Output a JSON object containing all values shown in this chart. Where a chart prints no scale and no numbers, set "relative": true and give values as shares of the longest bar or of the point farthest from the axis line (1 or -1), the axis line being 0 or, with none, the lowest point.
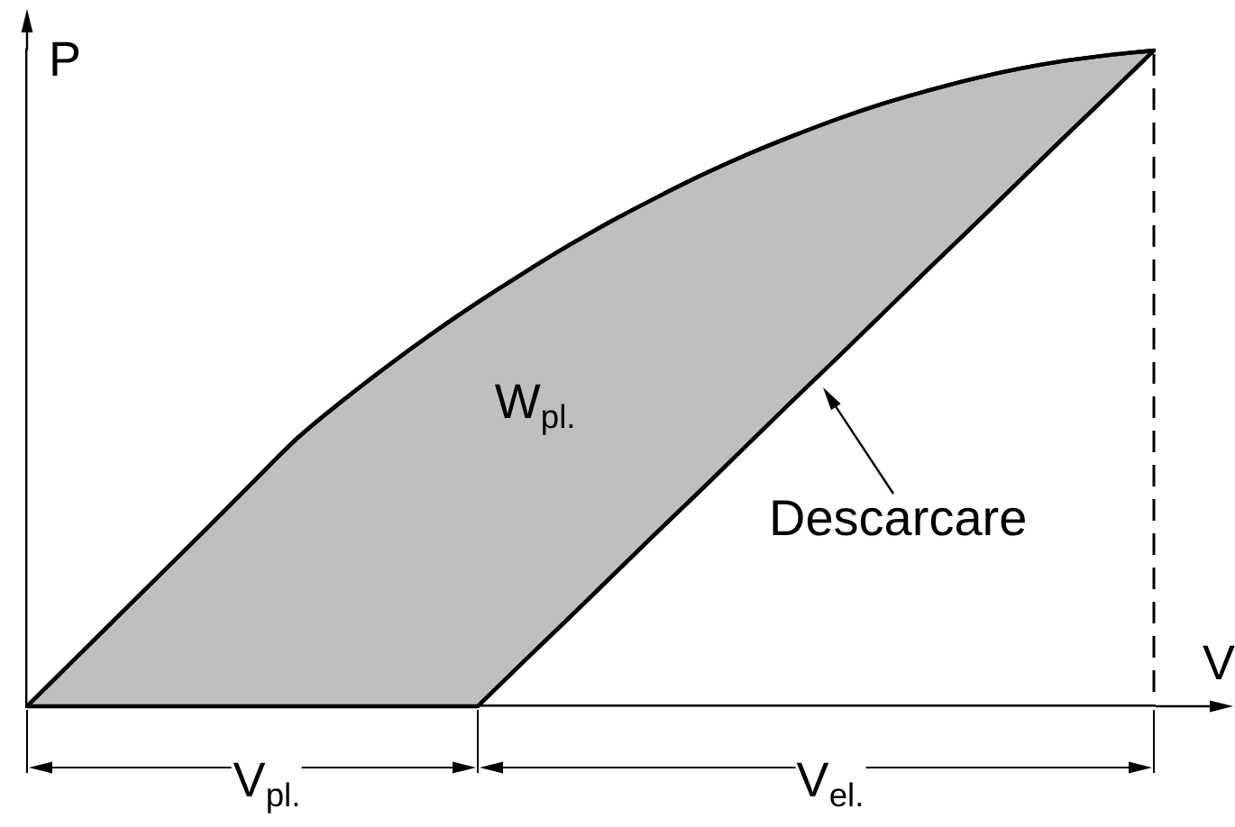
{
  "chart_data": {
    "type": "line",
    "relative": true,
    "xlabel": "V",
    "ylabel": "P",
    "categories": [
      null,
      null,
      null,
      null,
      null,
      null,
      null,
      null,
      null,
      null,
      null,
      null,
      null,
      null,
      null,
      null,
      null,
      null,
      null,
      null,
      null,
      null,
      null,
      null,
      null,
      null
    ],
    "series": [
      {
        "color": "#000000",
        "values": [
          0,
          0.068,
          0.136,
          0.204,
          0.272,
          0.341,
          0.409,
          0.466,
          0.519,
          0.569,
          0.616,
          0.66,
          0.702,
          0.741,
          0.777,
          0.811,
          0.842,
          0.87,
          0.896,
          0.919,
          0.939,
          0.957,
          0.972,
          0.984,
          0.993,
          1
        ],
        "upper": [
          0,
          0.068,
          0.136,
          0.204,
          0.272,
          0.341,
          0.409,
          0.466,
          0.519,
          0.569,
          0.616,
          0.66,
          0.702,
          0.741,
          0.777,
          0.811,
          0.842,
          0.87,
          0.896,
          0.919,
          0.939,
          0.957,
          0.972,
          0.984,
          0.993,
          1
        ],
        "lower": [
          0,
          0,
          0,
          0,
          0,
          0,
          0,
          0,
          0,
          0,
          0,
          0.067,
          0.133,
          0.2,
          0.267,
          0.333,
          0.4,
          0.467,
          0.533,
          0.6,
          0.667,
          0.733,
          0.8,
          0.867,
          0.933,
          1
        ]
      },
      {
        "name": "Descarcare",
        "color": "#000000",
        "values": [
          null,
          null,
          null,
          null,
          null,
          null,
          null,
          null,
          null,
          null,
          0,
          0.067,
          0.133,
          0.2,
          0.267,
          0.333,
          0.4,
          0.467,
          0.533,
          0.6,
          0.667,
          0.733,
          0.8,
          0.867,
          0.933,
          1
        ]
      }
    ],
    "annotations": [
      "W$_{pl.}$",
      "V$_{pl.}$",
      "V$_{el.}$"
    ]
  }
}
